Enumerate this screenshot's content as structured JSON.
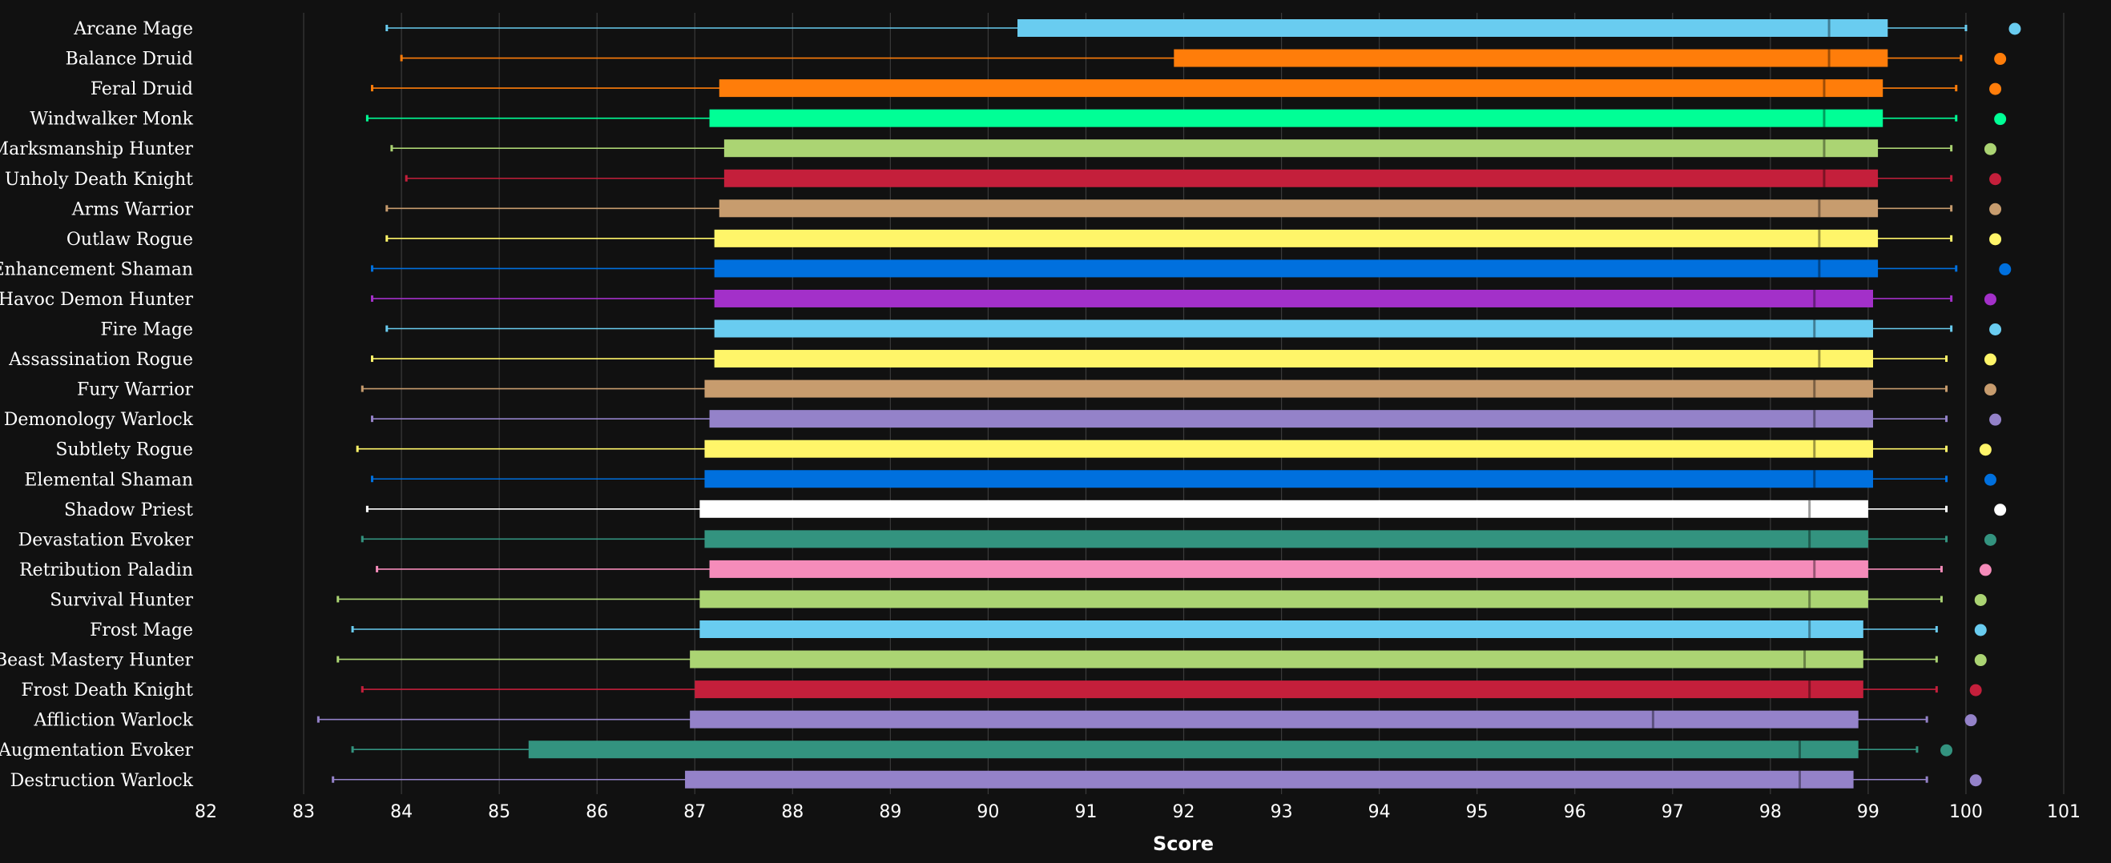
{
  "chart_data": {
    "type": "boxplot",
    "xlabel": "Score",
    "xlim": [
      82,
      101
    ],
    "xticks": [
      "82",
      "83",
      "84",
      "85",
      "86",
      "87",
      "88",
      "89",
      "90",
      "91",
      "92",
      "93",
      "94",
      "95",
      "96",
      "97",
      "98",
      "99",
      "100",
      "101"
    ],
    "grid": true,
    "background": "#111111",
    "series": [
      {
        "name": "Arcane Mage",
        "color": "#69CCF0",
        "min": 83.85,
        "q1": 90.3,
        "median": 98.6,
        "q3": 99.2,
        "max": 100.0,
        "max_point": 100.5
      },
      {
        "name": "Balance Druid",
        "color": "#FF7D0A",
        "min": 84.0,
        "q1": 91.9,
        "median": 98.6,
        "q3": 99.2,
        "max": 99.95,
        "max_point": 100.35
      },
      {
        "name": "Feral Druid",
        "color": "#FF7D0A",
        "min": 83.7,
        "q1": 87.25,
        "median": 98.55,
        "q3": 99.15,
        "max": 99.9,
        "max_point": 100.3
      },
      {
        "name": "Windwalker Monk",
        "color": "#00FF96",
        "min": 83.65,
        "q1": 87.15,
        "median": 98.55,
        "q3": 99.15,
        "max": 99.9,
        "max_point": 100.35
      },
      {
        "name": "Marksmanship Hunter",
        "color": "#ABD473",
        "min": 83.9,
        "q1": 87.3,
        "median": 98.55,
        "q3": 99.1,
        "max": 99.85,
        "max_point": 100.25
      },
      {
        "name": "Unholy Death Knight",
        "color": "#C41F3B",
        "min": 84.05,
        "q1": 87.3,
        "median": 98.55,
        "q3": 99.1,
        "max": 99.85,
        "max_point": 100.3
      },
      {
        "name": "Arms Warrior",
        "color": "#C79C6E",
        "min": 83.85,
        "q1": 87.25,
        "median": 98.5,
        "q3": 99.1,
        "max": 99.85,
        "max_point": 100.3
      },
      {
        "name": "Outlaw Rogue",
        "color": "#FFF569",
        "min": 83.85,
        "q1": 87.2,
        "median": 98.5,
        "q3": 99.1,
        "max": 99.85,
        "max_point": 100.3
      },
      {
        "name": "Enhancement Shaman",
        "color": "#0070DE",
        "min": 83.7,
        "q1": 87.2,
        "median": 98.5,
        "q3": 99.1,
        "max": 99.9,
        "max_point": 100.4
      },
      {
        "name": "Havoc Demon Hunter",
        "color": "#A330C9",
        "min": 83.7,
        "q1": 87.2,
        "median": 98.45,
        "q3": 99.05,
        "max": 99.85,
        "max_point": 100.25
      },
      {
        "name": "Fire Mage",
        "color": "#69CCF0",
        "min": 83.85,
        "q1": 87.2,
        "median": 98.45,
        "q3": 99.05,
        "max": 99.85,
        "max_point": 100.3
      },
      {
        "name": "Assassination Rogue",
        "color": "#FFF569",
        "min": 83.7,
        "q1": 87.2,
        "median": 98.5,
        "q3": 99.05,
        "max": 99.8,
        "max_point": 100.25
      },
      {
        "name": "Fury Warrior",
        "color": "#C79C6E",
        "min": 83.6,
        "q1": 87.1,
        "median": 98.45,
        "q3": 99.05,
        "max": 99.8,
        "max_point": 100.25
      },
      {
        "name": "Demonology Warlock",
        "color": "#9482C9",
        "min": 83.7,
        "q1": 87.15,
        "median": 98.45,
        "q3": 99.05,
        "max": 99.8,
        "max_point": 100.3
      },
      {
        "name": "Subtlety Rogue",
        "color": "#FFF569",
        "min": 83.55,
        "q1": 87.1,
        "median": 98.45,
        "q3": 99.05,
        "max": 99.8,
        "max_point": 100.2
      },
      {
        "name": "Elemental Shaman",
        "color": "#0070DE",
        "min": 83.7,
        "q1": 87.1,
        "median": 98.45,
        "q3": 99.05,
        "max": 99.8,
        "max_point": 100.25
      },
      {
        "name": "Shadow Priest",
        "color": "#FFFFFF",
        "min": 83.65,
        "q1": 87.05,
        "median": 98.4,
        "q3": 99.0,
        "max": 99.8,
        "max_point": 100.35
      },
      {
        "name": "Devastation Evoker",
        "color": "#33937F",
        "min": 83.6,
        "q1": 87.1,
        "median": 98.4,
        "q3": 99.0,
        "max": 99.8,
        "max_point": 100.25
      },
      {
        "name": "Retribution Paladin",
        "color": "#F58CBA",
        "min": 83.75,
        "q1": 87.15,
        "median": 98.45,
        "q3": 99.0,
        "max": 99.75,
        "max_point": 100.2
      },
      {
        "name": "Survival Hunter",
        "color": "#ABD473",
        "min": 83.35,
        "q1": 87.05,
        "median": 98.4,
        "q3": 99.0,
        "max": 99.75,
        "max_point": 100.15
      },
      {
        "name": "Frost Mage",
        "color": "#69CCF0",
        "min": 83.5,
        "q1": 87.05,
        "median": 98.4,
        "q3": 98.95,
        "max": 99.7,
        "max_point": 100.15
      },
      {
        "name": "Beast Mastery Hunter",
        "color": "#ABD473",
        "min": 83.35,
        "q1": 86.95,
        "median": 98.35,
        "q3": 98.95,
        "max": 99.7,
        "max_point": 100.15
      },
      {
        "name": "Frost Death Knight",
        "color": "#C41F3B",
        "min": 83.6,
        "q1": 87.0,
        "median": 98.4,
        "q3": 98.95,
        "max": 99.7,
        "max_point": 100.1
      },
      {
        "name": "Affliction Warlock",
        "color": "#9482C9",
        "min": 83.15,
        "q1": 86.95,
        "median": 96.8,
        "q3": 98.9,
        "max": 99.6,
        "max_point": 100.05
      },
      {
        "name": "Augmentation Evoker",
        "color": "#33937F",
        "min": 83.5,
        "q1": 85.3,
        "median": 98.3,
        "q3": 98.9,
        "max": 99.5,
        "max_point": 99.8
      },
      {
        "name": "Destruction Warlock",
        "color": "#9482C9",
        "min": 83.3,
        "q1": 86.9,
        "median": 98.3,
        "q3": 98.85,
        "max": 99.6,
        "max_point": 100.1
      }
    ]
  }
}
